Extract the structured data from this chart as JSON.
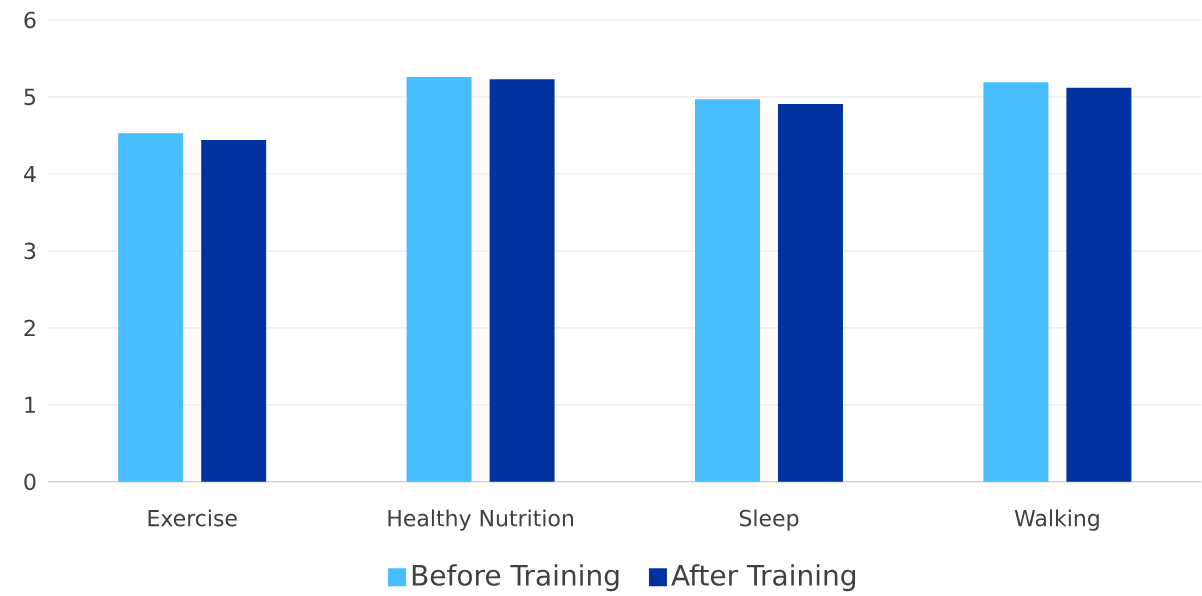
{
  "chart_data": {
    "type": "bar",
    "categories": [
      "Exercise",
      "Healthy Nutrition",
      "Sleep",
      "Walking"
    ],
    "series": [
      {
        "name": "Before Training",
        "color": "#47bdff",
        "values": [
          4.53,
          5.26,
          4.97,
          5.19
        ]
      },
      {
        "name": "After Training",
        "color": "#0033a0",
        "values": [
          4.44,
          5.23,
          4.91,
          5.12
        ]
      }
    ],
    "ylim": [
      0,
      6
    ],
    "yticks": [
      0,
      1,
      2,
      3,
      4,
      5,
      6
    ],
    "grid": "y",
    "legend": "bottom"
  }
}
